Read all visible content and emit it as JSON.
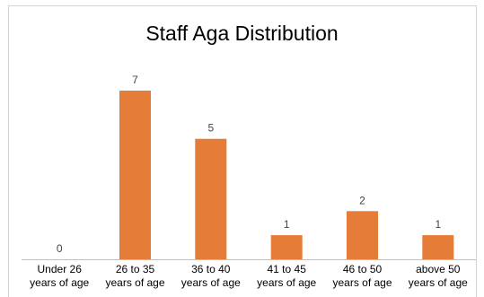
{
  "chart_data": {
    "type": "bar",
    "title": "Staff Aga Distribution",
    "categories": [
      [
        "Under 26",
        "years of age"
      ],
      [
        "26 to 35",
        "years of age"
      ],
      [
        "36 to 40",
        "years of age"
      ],
      [
        "41 to 45",
        "years of age"
      ],
      [
        "46 to 50",
        "years of age"
      ],
      [
        "above 50",
        "years of age"
      ]
    ],
    "values": [
      0,
      7,
      5,
      1,
      2,
      1
    ],
    "ylim": [
      0,
      7
    ],
    "grid": false,
    "data_labels": true,
    "bar_color": "#e57c37",
    "axis_color": "#bfbfbf"
  }
}
